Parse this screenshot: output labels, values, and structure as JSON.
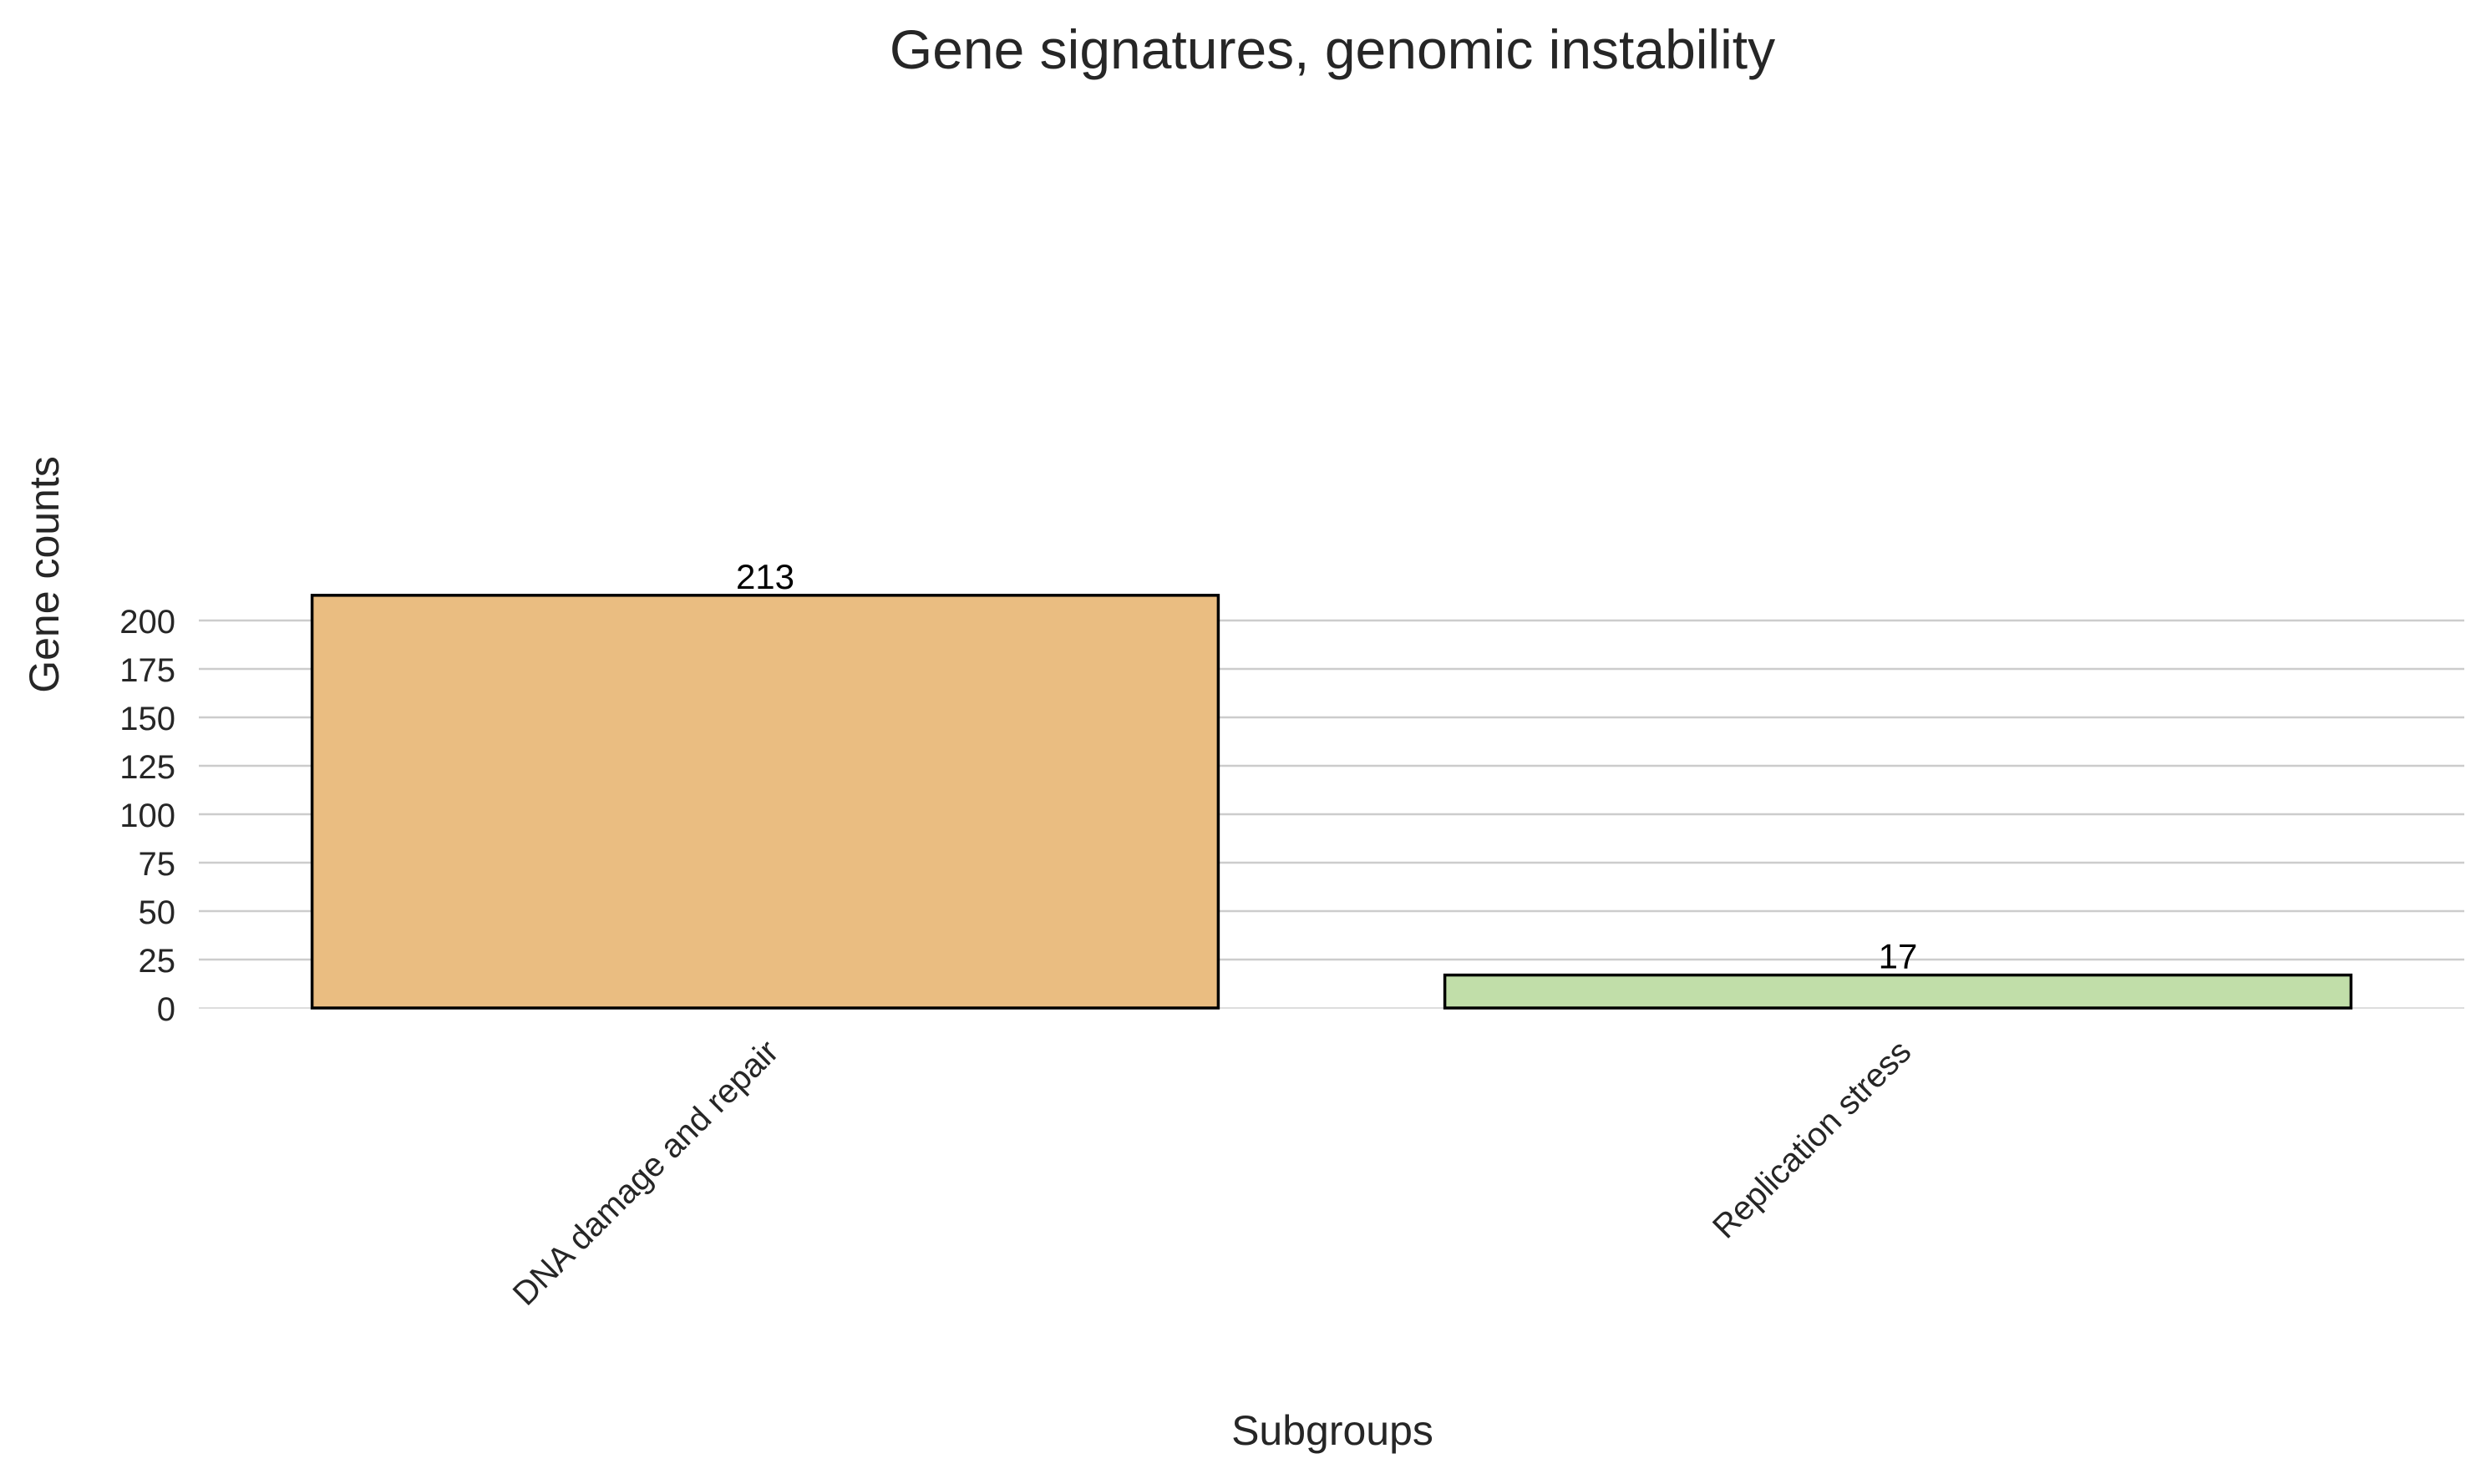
{
  "chart_data": {
    "type": "bar",
    "title": "Gene signatures, genomic instability",
    "xlabel": "Subgroups",
    "ylabel": "Gene counts",
    "categories": [
      "DNA damage and repair",
      "Replication stress"
    ],
    "values": [
      213,
      17
    ],
    "data_labels": [
      "213",
      "17"
    ],
    "bar_colors": [
      "#eabd81",
      "#c1dea9"
    ],
    "bar_edge_color": "#000000",
    "ylim": [
      0,
      225
    ],
    "yticks": [
      0,
      25,
      50,
      75,
      100,
      125,
      150,
      175,
      200
    ],
    "ytick_labels": [
      "0",
      "25",
      "50",
      "75",
      "100",
      "125",
      "150",
      "175",
      "200"
    ],
    "grid": true,
    "grid_color": "#cccccc",
    "text_color": "#262626"
  }
}
